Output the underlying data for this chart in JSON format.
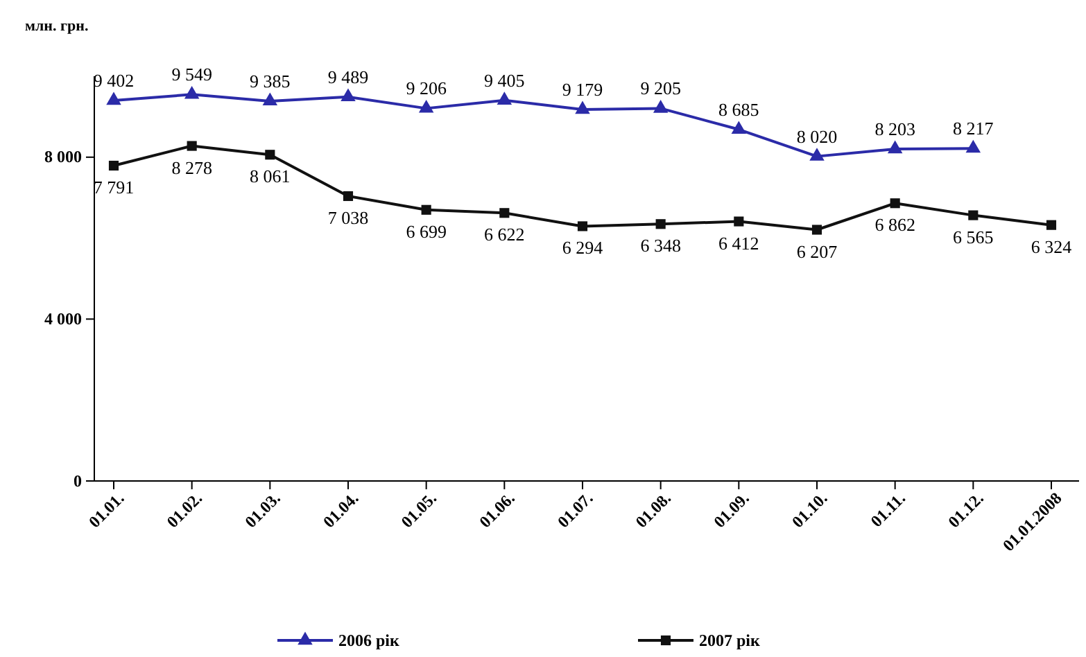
{
  "chart_data": {
    "type": "line",
    "ylabel": "млн. грн.",
    "categories": [
      "01.01.",
      "01.02.",
      "01.03.",
      "01.04.",
      "01.05.",
      "01.06.",
      "01.07.",
      "01.08.",
      "01.09.",
      "01.10.",
      "01.11.",
      "01.12.",
      "01.01.2008"
    ],
    "series": [
      {
        "name": "2006 рік",
        "color": "#2b2ba8",
        "marker": "triangle",
        "values": [
          9402,
          9549,
          9385,
          9489,
          9206,
          9405,
          9179,
          9205,
          8685,
          8020,
          8203,
          8217,
          null
        ],
        "value_labels": [
          "9 402",
          "9 549",
          "9 385",
          "9 489",
          "9 206",
          "9 405",
          "9 179",
          "9 205",
          "8 685",
          "8 020",
          "8 203",
          "8 217",
          null
        ]
      },
      {
        "name": "2007 рік",
        "color": "#111111",
        "marker": "square",
        "values": [
          7791,
          8278,
          8061,
          7038,
          6699,
          6622,
          6294,
          6348,
          6412,
          6207,
          6862,
          6565,
          6324
        ],
        "value_labels": [
          "7 791",
          "8 278",
          "8 061",
          "7 038",
          "6 699",
          "6 622",
          "6 294",
          "6 348",
          "6 412",
          "6 207",
          "6 862",
          "6 565",
          "6 324"
        ]
      }
    ],
    "ylim": [
      0,
      10000
    ],
    "yticks": [
      0,
      {
        "value": 4000,
        "label": "4 000"
      },
      {
        "value": 8000,
        "label": "8 000"
      }
    ],
    "grid": false,
    "legend": "bottom"
  }
}
